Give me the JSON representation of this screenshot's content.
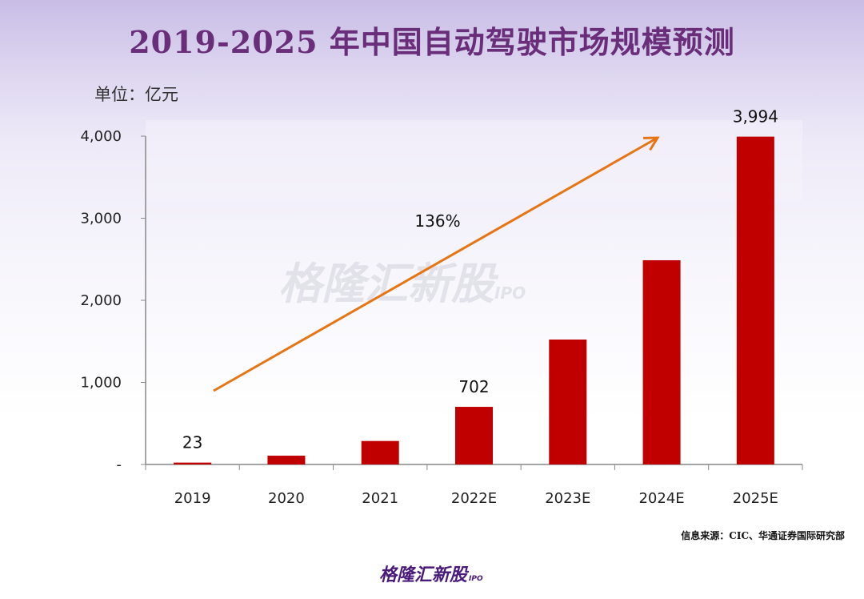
{
  "chart_data": {
    "type": "bar",
    "title": "2019-2025 年中国自动驾驶市场规模预测",
    "ylabel": "单位：亿元",
    "categories": [
      "2019",
      "2020",
      "2021",
      "2022E",
      "2023E",
      "2024E",
      "2025E"
    ],
    "values": [
      23,
      107,
      286,
      702,
      1522,
      2488,
      3994
    ],
    "data_labels": {
      "0": "23",
      "3": "702",
      "6": "3,994"
    },
    "ylim": [
      0,
      4000
    ],
    "yticks": [
      {
        "v": 0,
        "label": "-"
      },
      {
        "v": 1000,
        "label": "1,000"
      },
      {
        "v": 2000,
        "label": "2,000"
      },
      {
        "v": 3000,
        "label": "3,000"
      },
      {
        "v": 4000,
        "label": "4,000"
      }
    ],
    "annotation": "136%",
    "grid": false,
    "colors": {
      "bar": "#c00000",
      "arrow": "#e67514",
      "title": "#6a2d7a"
    }
  },
  "source": "信息来源：CIC、华通证券国际研究部",
  "logo": {
    "text": "格隆汇新股",
    "sub": "IPO"
  }
}
